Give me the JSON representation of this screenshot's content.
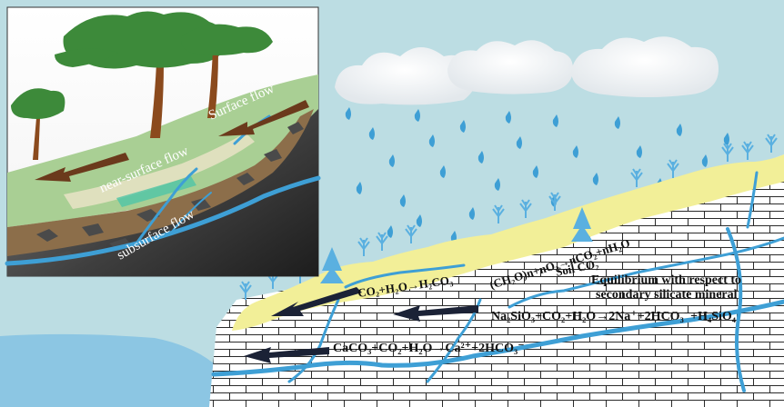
{
  "inset": {
    "surface_flow": "Surface flow",
    "near_surface_flow": "near-surface flow",
    "subsurface_flow": "subsurface flow"
  },
  "equations": {
    "carbonic_acid": "CO₂+H₂O→H₂CO₃",
    "organic": "(CH₂O)n+nO₂→nCO₂+nH₂O",
    "soil_co2": "Soil CO₂",
    "silicate": "Na₂SiO₃+CO₂+H₂O→2Na⁺+2HCO₃⁻+H₄SiO₄",
    "calcite": "CaCO₃+CO₂+H₂O→Ca²⁺+2HCO₃⁻"
  },
  "notes": {
    "equilibrium_line1": "Equilibrium with respect to",
    "equilibrium_line2": "secondary silicate mineral"
  },
  "colors": {
    "sky": "#bcdde3",
    "soil": "#f2ef98",
    "water": "#3e9fd5",
    "arrow": "#1b2236",
    "sea": "#8cc6e3",
    "tree": "#5ab0e0",
    "cloud": "#f3f5f7"
  }
}
